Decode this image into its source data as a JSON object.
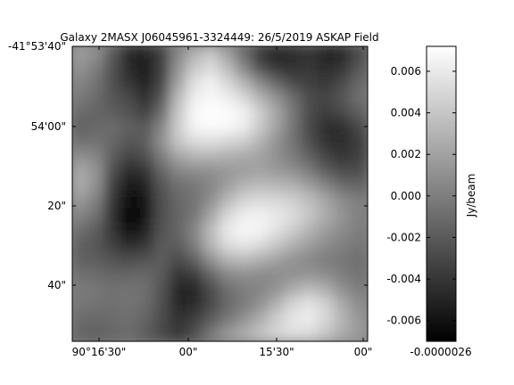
{
  "chart_data": {
    "type": "heatmap",
    "title": "Galaxy 2MASX J06045961-3324449: 26/5/2019 ASKAP Field",
    "xlabel": "",
    "ylabel": "",
    "x_ticks": [
      "90°16'30\"",
      "00\"",
      "15'30\"",
      "00\""
    ],
    "y_ticks": [
      "-41°53'40\"",
      "54'00\"",
      "20\"",
      "40\""
    ],
    "colorbar": {
      "label": "Jy/beam",
      "ticks": [
        "0.006",
        "0.004",
        "0.002",
        "0.000",
        "-0.002",
        "-0.004",
        "-0.006"
      ],
      "tick_values": [
        0.006,
        0.004,
        0.002,
        0.0,
        -0.002,
        -0.004,
        -0.006
      ],
      "range": [
        -0.007,
        0.0072
      ],
      "x_ticks_label": "-0.0000026",
      "colormap": "gray"
    },
    "grid": false,
    "values": [
      [
        0.0018,
        0.001,
        -0.002,
        -0.0048,
        -0.005,
        -0.0036,
        0.0005,
        0.0028,
        0.004,
        0.0018,
        -0.001,
        -0.0038,
        -0.005,
        -0.0046,
        -0.004,
        -0.0052,
        -0.0048,
        -0.003
      ],
      [
        0.0012,
        0.0,
        -0.0024,
        -0.0046,
        -0.0054,
        -0.0034,
        0.0012,
        0.0042,
        0.0052,
        0.0034,
        0.0004,
        -0.0026,
        -0.004,
        -0.0042,
        -0.0038,
        -0.0046,
        -0.004,
        -0.0022
      ],
      [
        0.0004,
        -0.0006,
        -0.0026,
        -0.004,
        -0.0052,
        -0.0032,
        0.002,
        0.0055,
        0.0064,
        0.005,
        0.003,
        0.0005,
        -0.0014,
        -0.003,
        -0.0034,
        -0.0038,
        -0.003,
        -0.0012
      ],
      [
        -0.0002,
        -0.001,
        -0.0022,
        -0.003,
        -0.0044,
        -0.0022,
        0.0032,
        0.0062,
        0.0068,
        0.0062,
        0.005,
        0.0028,
        0.001,
        -0.001,
        -0.0028,
        -0.0032,
        -0.0022,
        -0.0008
      ],
      [
        -0.001,
        -0.0014,
        -0.0018,
        -0.0024,
        -0.0034,
        -0.001,
        0.004,
        0.0068,
        0.0072,
        0.007,
        0.0064,
        0.0044,
        0.0022,
        -0.0004,
        -0.0028,
        -0.0036,
        -0.003,
        -0.0016
      ],
      [
        -0.0016,
        -0.0012,
        -0.001,
        -0.0016,
        -0.002,
        0.0004,
        0.0044,
        0.0066,
        0.007,
        0.0068,
        0.0062,
        0.0042,
        0.002,
        -0.0006,
        -0.003,
        -0.0044,
        -0.0044,
        -0.003
      ],
      [
        -0.0008,
        -0.0006,
        -0.0012,
        -0.0022,
        -0.0018,
        0.001,
        0.004,
        0.0052,
        0.0054,
        0.005,
        0.0044,
        0.003,
        0.0012,
        -0.0006,
        -0.0026,
        -0.0042,
        -0.0046,
        -0.0036
      ],
      [
        0.001,
        0.0004,
        -0.0018,
        -0.0032,
        -0.0026,
        0.0,
        0.0022,
        0.003,
        0.003,
        0.0028,
        0.0024,
        0.002,
        0.001,
        -0.0002,
        -0.0016,
        -0.0032,
        -0.004,
        -0.0034
      ],
      [
        0.0024,
        0.0012,
        -0.0026,
        -0.0046,
        -0.004,
        -0.0014,
        0.0004,
        0.0008,
        0.001,
        0.0014,
        0.0018,
        0.002,
        0.0016,
        0.001,
        -0.0002,
        -0.0018,
        -0.0028,
        -0.0026
      ],
      [
        0.0026,
        0.001,
        -0.0034,
        -0.0058,
        -0.005,
        -0.0022,
        -0.0008,
        -0.0004,
        0.0004,
        0.0018,
        0.003,
        0.0034,
        0.0032,
        0.0028,
        0.0018,
        0.0004,
        -0.001,
        -0.0014
      ],
      [
        0.0016,
        0.0002,
        -0.004,
        -0.0066,
        -0.0056,
        -0.0026,
        -0.0012,
        -0.0006,
        0.001,
        0.0032,
        0.0048,
        0.0052,
        0.005,
        0.0046,
        0.0036,
        0.0022,
        0.0008,
        0.0
      ],
      [
        0.0004,
        -0.0008,
        -0.0042,
        -0.007,
        -0.0058,
        -0.0026,
        -0.0014,
        -0.0004,
        0.0022,
        0.005,
        0.0062,
        0.0064,
        0.006,
        0.0052,
        0.004,
        0.0026,
        0.0012,
        0.0002
      ],
      [
        -0.0008,
        -0.0018,
        -0.004,
        -0.0062,
        -0.0052,
        -0.0024,
        -0.0014,
        0.0004,
        0.0034,
        0.006,
        0.0068,
        0.0066,
        0.0056,
        0.0044,
        0.003,
        0.0018,
        0.0008,
        0.0
      ],
      [
        -0.0016,
        -0.0022,
        -0.0034,
        -0.0046,
        -0.004,
        -0.002,
        -0.0018,
        0.0,
        0.003,
        0.0052,
        0.0058,
        0.0052,
        0.004,
        0.0028,
        0.0018,
        0.0008,
        0.0002,
        -0.0004
      ],
      [
        -0.0016,
        -0.0018,
        -0.0024,
        -0.0028,
        -0.0024,
        -0.0018,
        -0.0028,
        -0.0016,
        0.0012,
        0.003,
        0.0034,
        0.0028,
        0.002,
        0.0012,
        0.0006,
        0.0,
        -0.0004,
        -0.0008
      ],
      [
        -0.0008,
        -0.001,
        -0.0014,
        -0.0014,
        -0.0012,
        -0.002,
        -0.004,
        -0.0036,
        -0.0012,
        0.0006,
        0.001,
        0.0008,
        0.0008,
        0.001,
        0.0012,
        0.0008,
        0.0,
        -0.0006
      ],
      [
        -0.0002,
        -0.0004,
        -0.0008,
        -0.0006,
        -0.0008,
        -0.0024,
        -0.0048,
        -0.0048,
        -0.0028,
        -0.0008,
        0.0,
        0.0004,
        0.0012,
        0.0026,
        0.0034,
        0.0026,
        0.001,
        0.0
      ],
      [
        -0.0004,
        -0.0006,
        -0.0008,
        -0.0006,
        -0.001,
        -0.0026,
        -0.0048,
        -0.0046,
        -0.003,
        -0.0012,
        -0.0002,
        0.001,
        0.0028,
        0.0048,
        0.0056,
        0.0046,
        0.0024,
        0.0008
      ],
      [
        -0.001,
        -0.0012,
        -0.001,
        -0.0008,
        -0.0014,
        -0.0028,
        -0.0042,
        -0.0036,
        -0.002,
        -0.0004,
        0.001,
        0.0026,
        0.0044,
        0.0058,
        0.0062,
        0.005,
        0.003,
        0.0014
      ],
      [
        -0.0014,
        -0.0016,
        -0.0012,
        -0.001,
        -0.0018,
        -0.003,
        -0.0038,
        -0.0026,
        -0.0004,
        0.0014,
        0.0026,
        0.0038,
        0.0048,
        0.0054,
        0.0052,
        0.004,
        0.0026,
        0.0016
      ]
    ]
  }
}
